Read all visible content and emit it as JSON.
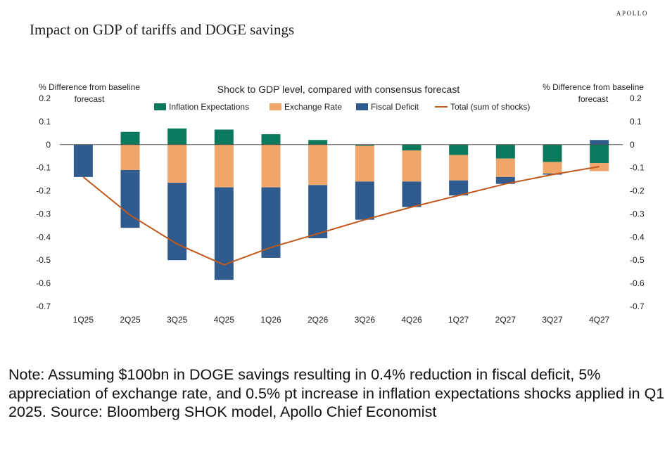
{
  "brand": "APOLLO",
  "title": "Impact on GDP of tariffs and DOGE savings",
  "note": "Note: Assuming $100bn in DOGE savings resulting in 0.4% reduction in fiscal deficit, 5% appreciation of exchange rate, and 0.5% pt increase in inflation expectations shocks applied in Q1 2025. Source: Bloomberg SHOK model, Apollo Chief Economist",
  "chart_data": {
    "type": "bar",
    "stacked": true,
    "title": "Shock to GDP level, compared with consensus forecast",
    "ylabel_left": [
      "% Difference from baseline",
      "forecast"
    ],
    "ylabel_right": [
      "% Difference from baseline",
      "forecast"
    ],
    "ylim": [
      -0.7,
      0.2
    ],
    "yticks": [
      0.2,
      0.1,
      0,
      -0.1,
      -0.2,
      -0.3,
      -0.4,
      -0.5,
      -0.6,
      -0.7
    ],
    "ytick_labels": [
      "0.2",
      "0.1",
      "0",
      "-0.1",
      "-0.2",
      "-0.3",
      "-0.4",
      "-0.5",
      "-0.6",
      "-0.7"
    ],
    "categories": [
      "1Q25",
      "2Q25",
      "3Q25",
      "4Q25",
      "1Q26",
      "2Q26",
      "3Q26",
      "4Q26",
      "1Q27",
      "2Q27",
      "3Q27",
      "4Q27"
    ],
    "series": [
      {
        "name": "Inflation Expectations",
        "kind": "bar",
        "color": "#0b7a5c",
        "values": [
          0,
          0.055,
          0.07,
          0.065,
          0.045,
          0.02,
          -0.005,
          -0.025,
          -0.045,
          -0.06,
          -0.075,
          -0.08
        ]
      },
      {
        "name": "Exchange Rate",
        "kind": "bar",
        "color": "#f0a56a",
        "values": [
          0,
          -0.11,
          -0.165,
          -0.185,
          -0.185,
          -0.175,
          -0.155,
          -0.135,
          -0.11,
          -0.08,
          -0.05,
          -0.035
        ]
      },
      {
        "name": "Fiscal Deficit",
        "kind": "bar",
        "color": "#2f5b8f",
        "values": [
          -0.14,
          -0.25,
          -0.335,
          -0.4,
          -0.305,
          -0.23,
          -0.165,
          -0.11,
          -0.065,
          -0.03,
          -0.005,
          0.02
        ]
      },
      {
        "name": "Total (sum of shocks)",
        "kind": "line",
        "color": "#c0591b",
        "values": [
          -0.14,
          -0.305,
          -0.43,
          -0.52,
          -0.445,
          -0.385,
          -0.325,
          -0.27,
          -0.22,
          -0.17,
          -0.13,
          -0.095
        ]
      }
    ],
    "legend_position": "top-center"
  }
}
